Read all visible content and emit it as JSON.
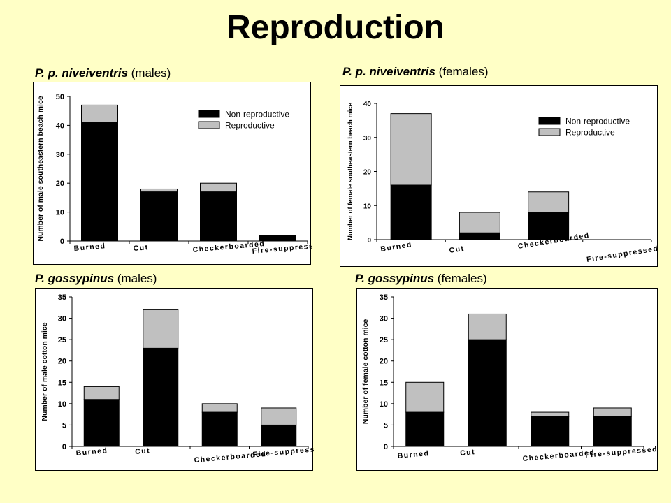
{
  "title": "Reproduction",
  "colors": {
    "background": "#FFFFC6",
    "non_reproductive": "#000000",
    "reproductive": "#C0C0C0"
  },
  "panels": [
    {
      "species": "P. p. niveiventris",
      "sex": "(males)"
    },
    {
      "species": "P. p. niveiventris",
      "sex": "(females)"
    },
    {
      "species": "P. gossypinus",
      "sex": "(males)"
    },
    {
      "species": "P. gossypinus",
      "sex": "(females)"
    }
  ],
  "chart_data": [
    {
      "type": "bar",
      "stacked": true,
      "categories": [
        "Burned",
        "Cut",
        "Checkerboarded",
        "Fire-suppressed"
      ],
      "series": [
        {
          "name": "Non-reproductive",
          "values": [
            41,
            17,
            17,
            2
          ]
        },
        {
          "name": "Reproductive",
          "values": [
            6,
            1,
            3,
            0
          ]
        }
      ],
      "ylabel": "Number of male southeastern beach mice",
      "ylim": [
        0,
        50
      ],
      "yticks": [
        "0",
        "10",
        "20",
        "30",
        "40",
        "50"
      ],
      "legend": "top-right",
      "grid": false
    },
    {
      "type": "bar",
      "stacked": true,
      "categories": [
        "Burned",
        "Cut",
        "Checkerboarded",
        "Fire-suppressed"
      ],
      "series": [
        {
          "name": "Non-reproductive",
          "values": [
            16,
            2,
            8,
            0
          ]
        },
        {
          "name": "Reproductive",
          "values": [
            21,
            6,
            6,
            0
          ]
        }
      ],
      "ylabel": "Number of female southeastern beach mice",
      "ylim": [
        0,
        40
      ],
      "yticks": [
        "0",
        "10",
        "20",
        "30",
        "40"
      ],
      "legend": "top-right",
      "grid": false
    },
    {
      "type": "bar",
      "stacked": true,
      "categories": [
        "Burned",
        "Cut",
        "Checkerboarded",
        "Fire-suppressed"
      ],
      "series": [
        {
          "values": [
            11,
            23,
            8,
            5
          ]
        },
        {
          "values": [
            3,
            9,
            2,
            4
          ]
        }
      ],
      "ylabel": "Number of male cotton mice",
      "ylim": [
        0,
        35
      ],
      "yticks": [
        "0",
        "5",
        "10",
        "15",
        "20",
        "25",
        "30",
        "35"
      ],
      "grid": false
    },
    {
      "type": "bar",
      "stacked": true,
      "categories": [
        "Burned",
        "Cut",
        "Checkerboarded",
        "Fire-suppressed"
      ],
      "series": [
        {
          "values": [
            8,
            25,
            7,
            7
          ]
        },
        {
          "values": [
            7,
            6,
            1,
            2
          ]
        }
      ],
      "ylabel": "Number of female cotton mice",
      "ylim": [
        0,
        35
      ],
      "yticks": [
        "0",
        "5",
        "10",
        "15",
        "20",
        "25",
        "30",
        "35"
      ],
      "grid": false
    }
  ]
}
